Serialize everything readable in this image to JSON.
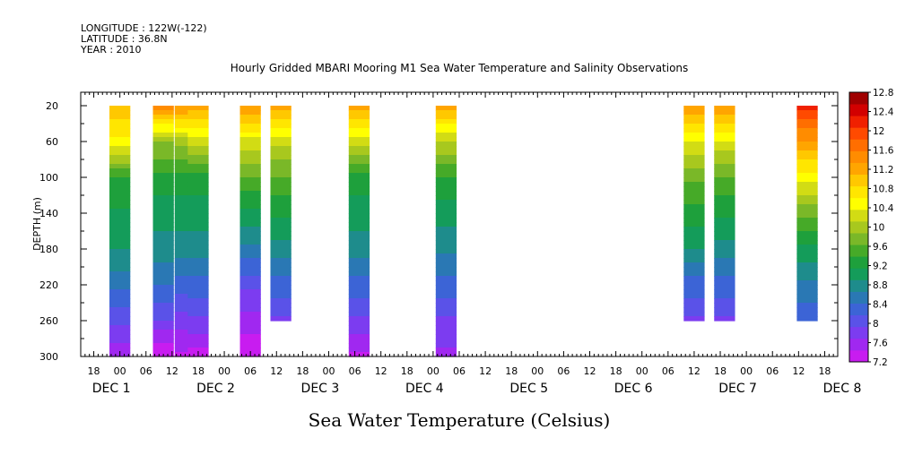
{
  "header": {
    "longitude": "LONGITUDE : 122W(-122)",
    "latitude": "LATITUDE : 36.8N",
    "year": "YEAR : 2010",
    "title": "Hourly Gridded MBARI Mooring M1 Sea Water Temperature and Salinity Observations"
  },
  "chart_data": {
    "type": "heatmap",
    "title": "Hourly Gridded MBARI Mooring M1 Sea Water Temperature and Salinity Observations",
    "xlabel": "Sea Water Temperature (Celsius)",
    "ylabel": "DEPTH (m)",
    "x_unit": "hours since Dec 1 2010 00:00",
    "xlim": [
      -9,
      165
    ],
    "ylim": [
      300,
      5
    ],
    "y_ticks": [
      20,
      60,
      100,
      140,
      180,
      220,
      260,
      300
    ],
    "x_hour_labels": [
      {
        "h": -6,
        "label": "18"
      },
      {
        "h": 0,
        "label": "00"
      },
      {
        "h": 6,
        "label": "06"
      },
      {
        "h": 12,
        "label": "12"
      },
      {
        "h": 18,
        "label": "18"
      },
      {
        "h": 24,
        "label": "00"
      },
      {
        "h": 30,
        "label": "06"
      },
      {
        "h": 36,
        "label": "12"
      },
      {
        "h": 42,
        "label": "18"
      },
      {
        "h": 48,
        "label": "00"
      },
      {
        "h": 54,
        "label": "06"
      },
      {
        "h": 60,
        "label": "12"
      },
      {
        "h": 66,
        "label": "18"
      },
      {
        "h": 72,
        "label": "00"
      },
      {
        "h": 78,
        "label": "06"
      },
      {
        "h": 84,
        "label": "12"
      },
      {
        "h": 90,
        "label": "18"
      },
      {
        "h": 96,
        "label": "00"
      },
      {
        "h": 102,
        "label": "06"
      },
      {
        "h": 108,
        "label": "12"
      },
      {
        "h": 114,
        "label": "18"
      },
      {
        "h": 120,
        "label": "00"
      },
      {
        "h": 126,
        "label": "06"
      },
      {
        "h": 132,
        "label": "12"
      },
      {
        "h": 138,
        "label": "18"
      },
      {
        "h": 144,
        "label": "00"
      },
      {
        "h": 150,
        "label": "06"
      },
      {
        "h": 156,
        "label": "12"
      },
      {
        "h": 162,
        "label": "18"
      }
    ],
    "x_day_labels": [
      {
        "h": -3,
        "label": "DEC  1"
      },
      {
        "h": 21,
        "label": "DEC  2"
      },
      {
        "h": 45,
        "label": "DEC  3"
      },
      {
        "h": 69,
        "label": "DEC  4"
      },
      {
        "h": 93,
        "label": "DEC  5"
      },
      {
        "h": 117,
        "label": "DEC  6"
      },
      {
        "h": 141,
        "label": "DEC  7"
      },
      {
        "h": 165,
        "label": "DEC  8"
      }
    ],
    "colorbar": {
      "levels": [
        7.2,
        7.6,
        8,
        8.4,
        8.8,
        9.2,
        9.6,
        10,
        10.4,
        10.8,
        11.2,
        11.6,
        12,
        12.4,
        12.8
      ],
      "label_values": [
        "7.2",
        "7.6",
        "8",
        "8.4",
        "8.8",
        "9.2",
        "9.6",
        "10",
        "10.4",
        "10.8",
        "11.2",
        "11.6",
        "12",
        "12.4",
        "12.8"
      ],
      "colors": [
        "#c81cf0",
        "#a028f0",
        "#7c3cf0",
        "#5a52e8",
        "#3c64d6",
        "#2a78b4",
        "#1e8c8c",
        "#149c5a",
        "#1ea03c",
        "#46aa28",
        "#7ab828",
        "#a8c81e",
        "#d2dc14",
        "#ffff00",
        "#ffe600",
        "#ffc800",
        "#ffa500",
        "#ff8c00",
        "#ff6e00",
        "#ff4a00",
        "#f02000",
        "#d20000",
        "#a00000"
      ]
    },
    "profiles": [
      {
        "time_h": 0,
        "depths": [
          20,
          60,
          100,
          140,
          180,
          220,
          260,
          300
        ],
        "temps": [
          11.1,
          10.5,
          9.4,
          9.1,
          8.9,
          8.5,
          8.0,
          7.5
        ]
      },
      {
        "time_h": 10,
        "depths": [
          20,
          60,
          100,
          140,
          180,
          220,
          260,
          300
        ],
        "temps": [
          11.5,
          9.9,
          9.3,
          9.0,
          8.8,
          8.4,
          7.9,
          7.2
        ]
      },
      {
        "time_h": 15,
        "depths": [
          20,
          60,
          100,
          140,
          180,
          220,
          260,
          300
        ],
        "temps": [
          11.4,
          10.0,
          9.3,
          9.0,
          8.8,
          8.3,
          7.8,
          7.4
        ]
      },
      {
        "time_h": 18,
        "depths": [
          20,
          60,
          100,
          140,
          180,
          220,
          260,
          300
        ],
        "temps": [
          11.2,
          10.2,
          9.3,
          9.0,
          8.8,
          8.3,
          7.9,
          7.3
        ]
      },
      {
        "time_h": 30,
        "depths": [
          20,
          60,
          100,
          140,
          180,
          220,
          260,
          300
        ],
        "temps": [
          11.3,
          10.3,
          9.6,
          9.1,
          8.6,
          8.0,
          7.6,
          7.2
        ]
      },
      {
        "time_h": 37,
        "depths": [
          20,
          60,
          100,
          140,
          180,
          220,
          260
        ],
        "temps": [
          11.2,
          10.2,
          9.6,
          9.2,
          8.8,
          8.3,
          7.9
        ]
      },
      {
        "time_h": 55,
        "depths": [
          20,
          60,
          100,
          140,
          180,
          220,
          260,
          300
        ],
        "temps": [
          11.2,
          10.2,
          9.3,
          9.0,
          8.8,
          8.3,
          7.9,
          7.4
        ]
      },
      {
        "time_h": 75,
        "depths": [
          20,
          60,
          100,
          140,
          180,
          220,
          260,
          300
        ],
        "temps": [
          11.2,
          10.1,
          9.4,
          9.0,
          8.7,
          8.3,
          7.9,
          7.6
        ]
      },
      {
        "time_h": 132,
        "depths": [
          20,
          60,
          100,
          140,
          180,
          220,
          260
        ],
        "temps": [
          11.4,
          10.4,
          9.7,
          9.3,
          8.9,
          8.3,
          7.9
        ]
      },
      {
        "time_h": 139,
        "depths": [
          20,
          60,
          100,
          140,
          180,
          220,
          260
        ],
        "temps": [
          11.4,
          10.3,
          9.6,
          9.2,
          8.8,
          8.3,
          7.9
        ]
      },
      {
        "time_h": 158,
        "depths": [
          20,
          60,
          100,
          140,
          180,
          220,
          260
        ],
        "temps": [
          12.2,
          11.3,
          10.5,
          9.7,
          9.1,
          8.6,
          8.2
        ]
      }
    ]
  }
}
